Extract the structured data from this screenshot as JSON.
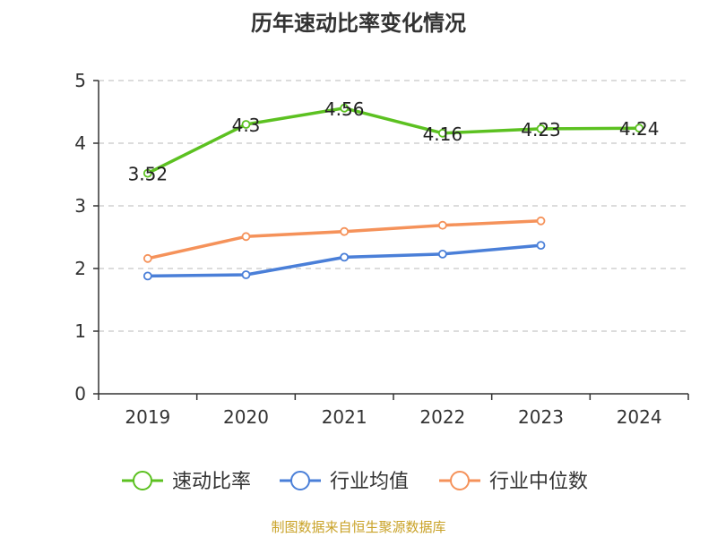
{
  "chart_data": {
    "type": "line",
    "title": "历年速动比率变化情况",
    "categories": [
      "2019",
      "2020",
      "2021",
      "2022",
      "2023",
      "2024"
    ],
    "y_ticks": [
      "0",
      "1",
      "2",
      "3",
      "4",
      "5"
    ],
    "ylim": [
      0,
      5
    ],
    "grid": true,
    "legend_position": "bottom",
    "series": [
      {
        "name": "速动比率",
        "color": "#5cc121",
        "values": [
          3.52,
          4.3,
          4.56,
          4.16,
          4.23,
          4.24
        ],
        "labels": [
          "3.52",
          "4.3",
          "4.56",
          "4.16",
          "4.23",
          "4.24"
        ]
      },
      {
        "name": "行业均值",
        "color": "#4a7fd8",
        "values": [
          1.88,
          1.9,
          2.18,
          2.23,
          2.37,
          null
        ]
      },
      {
        "name": "行业中位数",
        "color": "#f5925a",
        "values": [
          2.16,
          2.51,
          2.59,
          2.69,
          2.76,
          null
        ]
      }
    ],
    "source": "制图数据来自恒生聚源数据库"
  }
}
